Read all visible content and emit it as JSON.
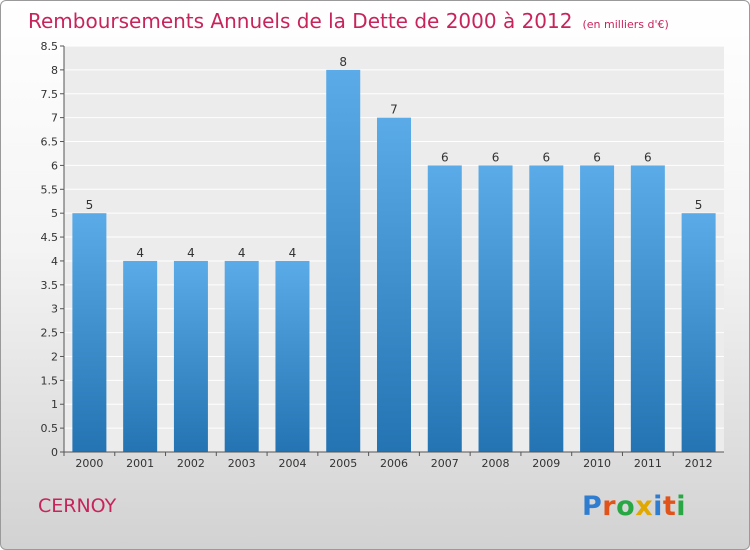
{
  "chart_data": {
    "type": "bar",
    "title": "Remboursements Annuels de la Dette de 2000 à 2012",
    "subtitle": "(en milliers d'€)",
    "categories": [
      "2000",
      "2001",
      "2002",
      "2003",
      "2004",
      "2005",
      "2006",
      "2007",
      "2008",
      "2009",
      "2010",
      "2011",
      "2012"
    ],
    "values": [
      5,
      4,
      4,
      4,
      4,
      8,
      7,
      6,
      6,
      6,
      6,
      6,
      5
    ],
    "ylim": [
      0,
      8.5
    ],
    "yticks": [
      "0",
      "0.5",
      "1",
      "1.5",
      "2",
      "2.5",
      "3",
      "3.5",
      "4",
      "4.5",
      "5",
      "5.5",
      "6",
      "6.5",
      "7",
      "7.5",
      "8",
      "8.5"
    ],
    "grid": true,
    "bar_color_top": "#5aabe8",
    "bar_color_bottom": "#2473b2"
  },
  "footer": {
    "city": "CERNOY",
    "brand": "Proxiti"
  }
}
